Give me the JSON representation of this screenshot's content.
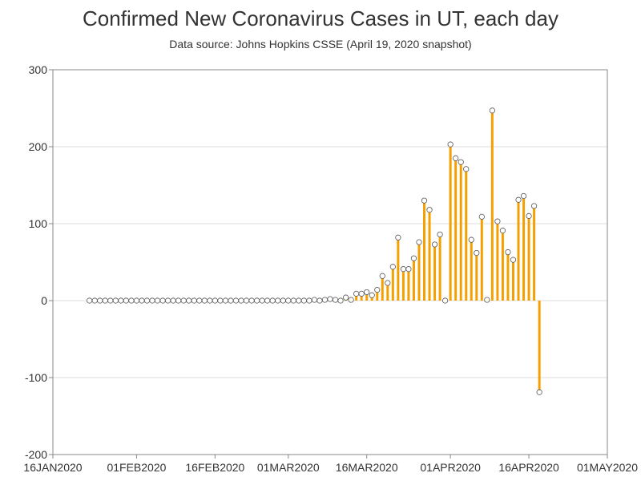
{
  "chart_data": {
    "type": "needle",
    "title": "Confirmed New Coronavirus Cases in UT, each day",
    "subtitle": "Data source: Johns Hopkins CSSE (April 19, 2020 snapshot)",
    "xlabel": "",
    "ylabel": "",
    "ylim": [
      -200,
      300
    ],
    "yticks": [
      -200,
      -100,
      0,
      100,
      200,
      300
    ],
    "xlim": [
      "2020-01-16",
      "2020-05-01"
    ],
    "xticks": [
      {
        "date": "2020-01-16",
        "label": "16JAN2020"
      },
      {
        "date": "2020-02-01",
        "label": "01FEB2020"
      },
      {
        "date": "2020-02-16",
        "label": "16FEB2020"
      },
      {
        "date": "2020-03-01",
        "label": "01MAR2020"
      },
      {
        "date": "2020-03-16",
        "label": "16MAR2020"
      },
      {
        "date": "2020-04-01",
        "label": "01APR2020"
      },
      {
        "date": "2020-04-16",
        "label": "16APR2020"
      },
      {
        "date": "2020-05-01",
        "label": "01MAY2020"
      }
    ],
    "grid": true,
    "colors": {
      "needle": "#f5a000",
      "marker_fill": "#ffffff",
      "marker_stroke": "#555555",
      "grid": "#dddddd",
      "frame": "#888888"
    },
    "x_start": "2020-01-23",
    "values": [
      0,
      0,
      0,
      0,
      0,
      0,
      0,
      0,
      0,
      0,
      0,
      0,
      0,
      0,
      0,
      0,
      0,
      0,
      0,
      0,
      0,
      0,
      0,
      0,
      0,
      0,
      0,
      0,
      0,
      0,
      0,
      0,
      0,
      0,
      0,
      0,
      0,
      0,
      0,
      0,
      0,
      0,
      0,
      1,
      0,
      1,
      2,
      1,
      0,
      4,
      1,
      9,
      9,
      11,
      7,
      14,
      32,
      23,
      44,
      82,
      41,
      41,
      55,
      76,
      130,
      118,
      73,
      86,
      0,
      203,
      185,
      180,
      171,
      79,
      62,
      109,
      1,
      247,
      103,
      91,
      63,
      53,
      131,
      136,
      110,
      123,
      -119
    ]
  }
}
